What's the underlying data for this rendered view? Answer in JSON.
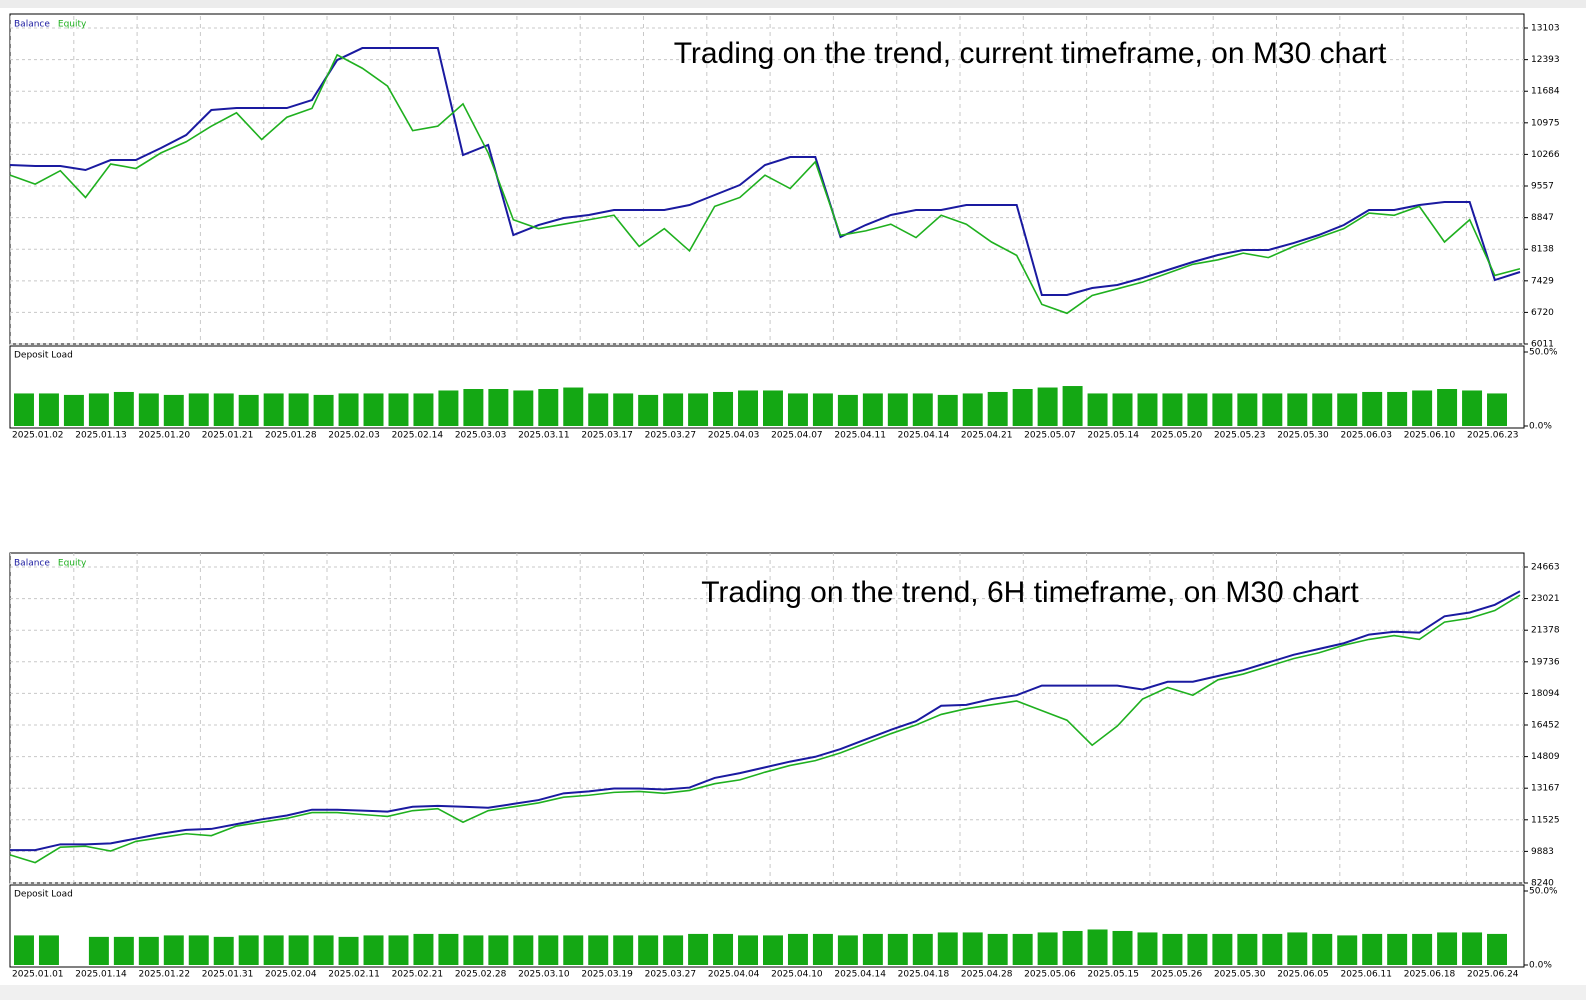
{
  "chart_data": [
    {
      "type": "line",
      "title": "Trading on the trend, current timeframe, on M30 chart",
      "ylim": [
        6011,
        13103
      ],
      "yticks": [
        6011,
        6720,
        7429,
        8138,
        8847,
        9557,
        10266,
        10975,
        11684,
        12393,
        13103
      ],
      "grid": true,
      "series": [
        {
          "name": "Balance",
          "color": "#1a1aa0",
          "values": [
            10028,
            10006,
            10006,
            9916,
            10140,
            10140,
            10409,
            10701,
            11262,
            11307,
            11307,
            11307,
            11486,
            12384,
            12653,
            12653,
            12653,
            12653,
            10252,
            10477,
            8457,
            8681,
            8838,
            8906,
            9018,
            9018,
            9018,
            9130,
            9355,
            9579,
            10028,
            10207,
            10207,
            8412,
            8681,
            8906,
            9018,
            9018,
            9130,
            9130,
            9130,
            7111,
            7111,
            7268,
            7335,
            7492,
            7672,
            7851,
            8008,
            8120,
            8120,
            8277,
            8457,
            8681,
            9018,
            9018,
            9130,
            9197,
            9197,
            7447,
            7627
          ]
        },
        {
          "name": "Equity",
          "color": "#1fb01f",
          "values": [
            9800,
            9600,
            9900,
            9300,
            10050,
            9950,
            10300,
            10550,
            10900,
            11200,
            10600,
            11100,
            11300,
            12500,
            12200,
            11800,
            10800,
            10900,
            11400,
            10300,
            8800,
            8600,
            8700,
            8800,
            8900,
            8200,
            8600,
            8100,
            9100,
            9300,
            9800,
            9500,
            10100,
            8450,
            8550,
            8700,
            8400,
            8900,
            8700,
            8300,
            8000,
            6900,
            6700,
            7100,
            7250,
            7400,
            7600,
            7800,
            7900,
            8050,
            7950,
            8200,
            8400,
            8600,
            8950,
            8900,
            9100,
            8300,
            8800,
            7550,
            7700
          ]
        }
      ]
    },
    {
      "type": "bar",
      "title": "Deposit Load",
      "color": "#14a814",
      "ylim": [
        0,
        50
      ],
      "yticks": [
        {
          "value": 0,
          "label": "0.0%"
        },
        {
          "value": 50,
          "label": "50.0%"
        }
      ],
      "date_labels": [
        "2025.01.02",
        "2025.01.13",
        "2025.01.20",
        "2025.01.21",
        "2025.01.28",
        "2025.02.03",
        "2025.02.14",
        "2025.03.03",
        "2025.03.11",
        "2025.03.17",
        "2025.03.27",
        "2025.04.03",
        "2025.04.07",
        "2025.04.11",
        "2025.04.14",
        "2025.04.21",
        "2025.05.07",
        "2025.05.14",
        "2025.05.20",
        "2025.05.23",
        "2025.05.30",
        "2025.06.03",
        "2025.06.10",
        "2025.06.23"
      ],
      "values": [
        22,
        22,
        21,
        22,
        23,
        22,
        21,
        22,
        22,
        21,
        22,
        22,
        21,
        22,
        22,
        22,
        22,
        24,
        25,
        25,
        24,
        25,
        26,
        22,
        22,
        21,
        22,
        22,
        23,
        24,
        24,
        22,
        22,
        21,
        22,
        22,
        22,
        21,
        22,
        23,
        25,
        26,
        27,
        22,
        22,
        22,
        22,
        22,
        22,
        22,
        22,
        22,
        22,
        22,
        23,
        23,
        24,
        25,
        24,
        22
      ]
    },
    {
      "type": "line",
      "title": "Trading on the trend, 6H timeframe, on M30 chart",
      "ylim": [
        8240,
        24663
      ],
      "yticks": [
        8240,
        9883,
        11525,
        13167,
        14809,
        16452,
        18094,
        19736,
        21378,
        23021,
        24663
      ],
      "grid": true,
      "series": [
        {
          "name": "Balance",
          "color": "#1a1aa0",
          "values": [
            9950,
            9950,
            10250,
            10250,
            10300,
            10550,
            10800,
            11000,
            11050,
            11300,
            11550,
            11750,
            12050,
            12050,
            12000,
            11950,
            12200,
            12250,
            12200,
            12150,
            12350,
            12550,
            12900,
            13000,
            13150,
            13150,
            13100,
            13200,
            13700,
            13950,
            14250,
            14550,
            14800,
            15200,
            15700,
            16200,
            16650,
            17450,
            17500,
            17800,
            18000,
            18500,
            18500,
            18500,
            18500,
            18300,
            18700,
            18700,
            19000,
            19300,
            19700,
            20100,
            20400,
            20700,
            21150,
            21300,
            21250,
            22100,
            22300,
            22700,
            23400
          ]
        },
        {
          "name": "Equity",
          "color": "#1fb01f",
          "values": [
            9700,
            9300,
            10100,
            10150,
            9900,
            10400,
            10600,
            10800,
            10700,
            11200,
            11400,
            11600,
            11900,
            11900,
            11800,
            11700,
            12000,
            12100,
            11400,
            12000,
            12200,
            12400,
            12700,
            12800,
            12950,
            13000,
            12900,
            13050,
            13400,
            13600,
            14000,
            14350,
            14600,
            15000,
            15500,
            16000,
            16450,
            17000,
            17300,
            17500,
            17700,
            17200,
            16700,
            15400,
            16400,
            17800,
            18400,
            18000,
            18800,
            19100,
            19500,
            19900,
            20200,
            20600,
            20900,
            21100,
            20900,
            21800,
            22000,
            22400,
            23200
          ]
        }
      ]
    },
    {
      "type": "bar",
      "title": "Deposit Load",
      "color": "#14a814",
      "ylim": [
        0,
        50
      ],
      "yticks": [
        {
          "value": 0,
          "label": "0.0%"
        },
        {
          "value": 50,
          "label": "50.0%"
        }
      ],
      "date_labels": [
        "2025.01.01",
        "2025.01.14",
        "2025.01.22",
        "2025.01.31",
        "2025.02.04",
        "2025.02.11",
        "2025.02.21",
        "2025.02.28",
        "2025.03.10",
        "2025.03.19",
        "2025.03.27",
        "2025.04.04",
        "2025.04.10",
        "2025.04.14",
        "2025.04.18",
        "2025.04.28",
        "2025.05.06",
        "2025.05.15",
        "2025.05.26",
        "2025.05.30",
        "2025.06.05",
        "2025.06.11",
        "2025.06.18",
        "2025.06.24"
      ],
      "values": [
        20,
        20,
        0,
        19,
        19,
        19,
        20,
        20,
        19,
        20,
        20,
        20,
        20,
        19,
        20,
        20,
        21,
        21,
        20,
        20,
        20,
        20,
        20,
        20,
        20,
        20,
        20,
        21,
        21,
        20,
        20,
        21,
        21,
        20,
        21,
        21,
        21,
        22,
        22,
        21,
        21,
        22,
        23,
        24,
        23,
        22,
        21,
        21,
        21,
        21,
        21,
        22,
        21,
        20,
        21,
        21,
        21,
        22,
        22,
        21
      ]
    }
  ]
}
